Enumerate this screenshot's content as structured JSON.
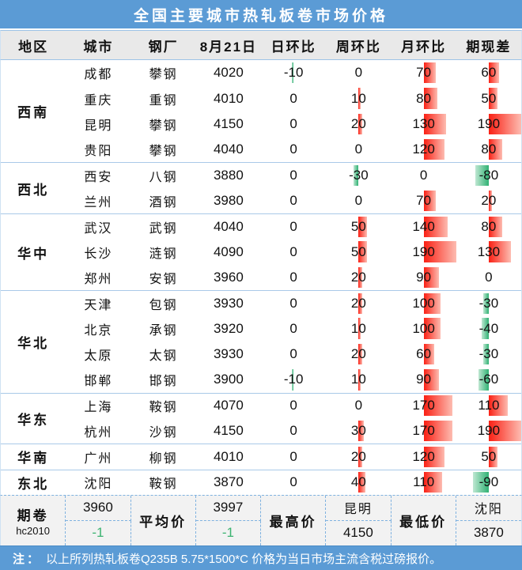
{
  "chart_data": {
    "type": "table",
    "title": "全国主要城市热轧板卷市场价格",
    "columns": [
      "地区",
      "城市",
      "钢厂",
      "8月21日",
      "日环比",
      "周环比",
      "月环比",
      "期现差"
    ],
    "bar_columns": [
      "day_change",
      "week_change",
      "month_change",
      "basis"
    ],
    "bar_scale_max": 190,
    "bar_axis": "column-center",
    "regions": [
      {
        "name": "西南",
        "rows": [
          {
            "city": "成都",
            "mill": "攀钢",
            "price": 4020,
            "day_change": -10,
            "week_change": 0,
            "month_change": 70,
            "basis": 60
          },
          {
            "city": "重庆",
            "mill": "重钢",
            "price": 4010,
            "day_change": 0,
            "week_change": 10,
            "month_change": 80,
            "basis": 50
          },
          {
            "city": "昆明",
            "mill": "攀钢",
            "price": 4150,
            "day_change": 0,
            "week_change": 20,
            "month_change": 130,
            "basis": 190
          },
          {
            "city": "贵阳",
            "mill": "攀钢",
            "price": 4040,
            "day_change": 0,
            "week_change": 0,
            "month_change": 120,
            "basis": 80
          }
        ]
      },
      {
        "name": "西北",
        "rows": [
          {
            "city": "西安",
            "mill": "八钢",
            "price": 3880,
            "day_change": 0,
            "week_change": -30,
            "month_change": 0,
            "basis": -80
          },
          {
            "city": "兰州",
            "mill": "酒钢",
            "price": 3980,
            "day_change": 0,
            "week_change": 0,
            "month_change": 70,
            "basis": 20
          }
        ]
      },
      {
        "name": "华中",
        "rows": [
          {
            "city": "武汉",
            "mill": "武钢",
            "price": 4040,
            "day_change": 0,
            "week_change": 50,
            "month_change": 140,
            "basis": 80
          },
          {
            "city": "长沙",
            "mill": "涟钢",
            "price": 4090,
            "day_change": 0,
            "week_change": 50,
            "month_change": 190,
            "basis": 130
          },
          {
            "city": "郑州",
            "mill": "安钢",
            "price": 3960,
            "day_change": 0,
            "week_change": 20,
            "month_change": 90,
            "basis": 0
          }
        ]
      },
      {
        "name": "华北",
        "rows": [
          {
            "city": "天津",
            "mill": "包钢",
            "price": 3930,
            "day_change": 0,
            "week_change": 20,
            "month_change": 100,
            "basis": -30
          },
          {
            "city": "北京",
            "mill": "承钢",
            "price": 3920,
            "day_change": 0,
            "week_change": 10,
            "month_change": 100,
            "basis": -40
          },
          {
            "city": "太原",
            "mill": "太钢",
            "price": 3930,
            "day_change": 0,
            "week_change": 20,
            "month_change": 60,
            "basis": -30
          },
          {
            "city": "邯郸",
            "mill": "邯钢",
            "price": 3900,
            "day_change": -10,
            "week_change": 10,
            "month_change": 90,
            "basis": -60
          }
        ]
      },
      {
        "name": "华东",
        "rows": [
          {
            "city": "上海",
            "mill": "鞍钢",
            "price": 4070,
            "day_change": 0,
            "week_change": 0,
            "month_change": 170,
            "basis": 110
          },
          {
            "city": "杭州",
            "mill": "沙钢",
            "price": 4150,
            "day_change": 0,
            "week_change": 30,
            "month_change": 170,
            "basis": 190
          }
        ]
      },
      {
        "name": "华南",
        "rows": [
          {
            "city": "广州",
            "mill": "柳钢",
            "price": 4010,
            "day_change": 0,
            "week_change": 20,
            "month_change": 120,
            "basis": 50
          }
        ]
      },
      {
        "name": "东北",
        "rows": [
          {
            "city": "沈阳",
            "mill": "鞍钢",
            "price": 3870,
            "day_change": 0,
            "week_change": 40,
            "month_change": 110,
            "basis": -90
          }
        ]
      }
    ],
    "summary": {
      "futures_label": "期卷",
      "futures_code": "hc2010",
      "futures_price": "3960",
      "futures_change": "-1",
      "avg_label": "平均价",
      "avg_price": "3997",
      "avg_change": "-1",
      "high_label": "最高价",
      "high_city": "昆明",
      "high_price": "4150",
      "low_label": "最低价",
      "low_city": "沈阳",
      "low_price": "3870"
    },
    "note_label": "注：",
    "note_text": "以上所列热轧板卷Q235B 5.75*1500*C 价格为当日市场主流含税过磅报价。"
  },
  "colors": {
    "accent_blue": "#5b9bd5",
    "border_blue": "#9dc3e6",
    "header_bg": "#e9e9e9",
    "summary_bg": "#f2f2f2",
    "bar_positive_red": "#fa2014",
    "bar_negative_green": "#2fb173",
    "change_text_green": "#3cb371"
  }
}
